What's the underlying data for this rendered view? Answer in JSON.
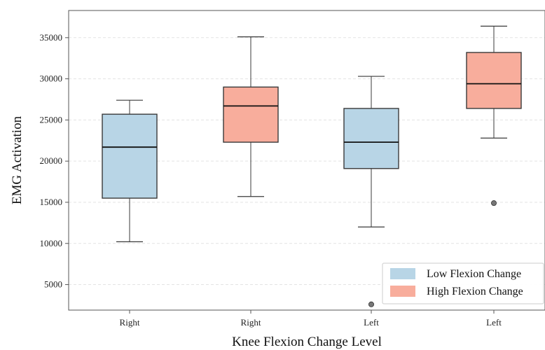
{
  "chart_data": {
    "type": "box",
    "xlabel": "Knee Flexion Change Level",
    "ylabel": "EMG Activation",
    "ylim": [
      1900,
      38300
    ],
    "yticks": [
      5000,
      10000,
      15000,
      20000,
      25000,
      30000,
      35000
    ],
    "grid": "y-dashed",
    "legend_position": "bottom-right",
    "colors": {
      "low": "#b8d5e6",
      "high": "#f8ad9c",
      "edge": "#3a3a3a",
      "outlier": "#777777",
      "grid": "#e3e3e3",
      "axis": "#555555"
    },
    "legend": [
      {
        "label": "Low Flexion Change",
        "series": "low"
      },
      {
        "label": "High Flexion Change",
        "series": "high"
      }
    ],
    "boxes": [
      {
        "category": "Right",
        "series": "low",
        "whisker_low": 10200,
        "q1": 15500,
        "median": 21700,
        "q3": 25700,
        "whisker_high": 27400,
        "outliers": []
      },
      {
        "category": "Right",
        "series": "high",
        "whisker_low": 15700,
        "q1": 22300,
        "median": 26700,
        "q3": 29000,
        "whisker_high": 35100,
        "outliers": []
      },
      {
        "category": "Left",
        "series": "low",
        "whisker_low": 12000,
        "q1": 19100,
        "median": 22300,
        "q3": 26400,
        "whisker_high": 30300,
        "outliers": [
          2600
        ]
      },
      {
        "category": "Left",
        "series": "high",
        "whisker_low": 22800,
        "q1": 26400,
        "median": 29400,
        "q3": 33200,
        "whisker_high": 36400,
        "outliers": [
          14900
        ]
      }
    ]
  }
}
